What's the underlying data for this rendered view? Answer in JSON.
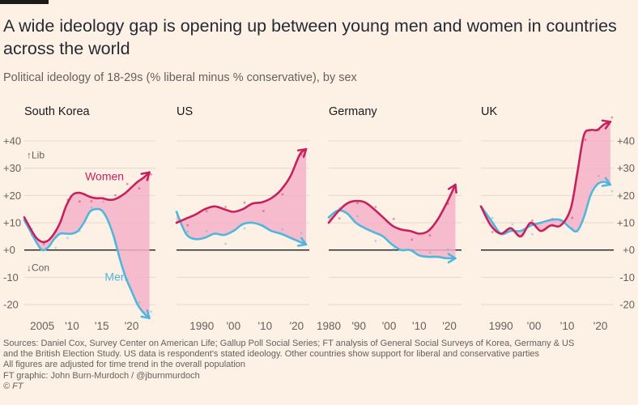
{
  "title": "A wide ideology gap is opening up between young men and women in countries across the world",
  "subtitle": "Political ideology of 18-29s (% liberal minus % conservative), by sex",
  "colors": {
    "women": "#c7215d",
    "men": "#4fb6dc",
    "gap_fill": "#f5b3c8",
    "background": "#fdf1e6",
    "grid": "#e5d8cc",
    "zero_line": "#1a1a1a"
  },
  "chart_data": {
    "type": "line",
    "ylim": [
      -25,
      45
    ],
    "yticks": [
      "+40",
      "+30",
      "+20",
      "+10",
      "+0",
      "-10",
      "-20"
    ],
    "ytick_values": [
      40,
      30,
      20,
      10,
      0,
      -10,
      -20
    ],
    "annotations": {
      "lib": "↑Lib",
      "con": "↓Con"
    },
    "panels": [
      {
        "title": "South Korea",
        "xlim": [
          2002,
          2024
        ],
        "xticks": [
          {
            "value": 2005,
            "label": "2005"
          },
          {
            "value": 2010,
            "label": "'10"
          },
          {
            "value": 2015,
            "label": "'15"
          },
          {
            "value": 2020,
            "label": "'20"
          }
        ],
        "series": [
          {
            "name": "Women",
            "x": [
              2002,
              2003,
              2004,
              2005,
              2006,
              2007,
              2008,
              2009,
              2010,
              2011,
              2012,
              2013,
              2014,
              2015,
              2016,
              2017,
              2018,
              2019,
              2020,
              2021,
              2022,
              2023
            ],
            "y": [
              12,
              8,
              4.5,
              3,
              3.5,
              6,
              10,
              16,
              20,
              21,
              20.5,
              19.5,
              19,
              19,
              18.5,
              18.5,
              19.5,
              21,
              23,
              25,
              26.5,
              28.5
            ]
          },
          {
            "name": "Men",
            "x": [
              2002,
              2003,
              2004,
              2005,
              2006,
              2007,
              2008,
              2009,
              2010,
              2011,
              2012,
              2013,
              2014,
              2015,
              2016,
              2017,
              2018,
              2019,
              2020,
              2021,
              2022,
              2023
            ],
            "y": [
              11,
              7,
              3,
              0,
              1,
              4,
              6,
              6,
              6,
              7,
              10,
              14,
              15,
              14.5,
              11,
              5,
              -3,
              -10,
              -15,
              -20,
              -23,
              -25
            ]
          }
        ]
      },
      {
        "title": "US",
        "xlim": [
          1982,
          2024
        ],
        "xticks": [
          {
            "value": 1990,
            "label": "1990"
          },
          {
            "value": 2000,
            "label": "'00"
          },
          {
            "value": 2010,
            "label": "'10"
          },
          {
            "value": 2020,
            "label": "'20"
          }
        ],
        "series": [
          {
            "name": "",
            "x": [
              1982,
              1985,
              1988,
              1991,
              1994,
              1997,
              2000,
              2003,
              2006,
              2009,
              2012,
              2015,
              2018,
              2021,
              2023
            ],
            "y": [
              10,
              11.5,
              13,
              15,
              16,
              15,
              14,
              15,
              17,
              17.5,
              19,
              22,
              27,
              35,
              37
            ]
          },
          {
            "name": "",
            "x": [
              1982,
              1985,
              1988,
              1991,
              1994,
              1997,
              2000,
              2003,
              2006,
              2009,
              2012,
              2015,
              2018,
              2021,
              2023
            ],
            "y": [
              14,
              6,
              4,
              4.5,
              6,
              5.5,
              7,
              9.5,
              10,
              9,
              7,
              6,
              4.5,
              3,
              2
            ]
          }
        ]
      },
      {
        "title": "Germany",
        "xlim": [
          1980,
          2024
        ],
        "xticks": [
          {
            "value": 1980,
            "label": "1980"
          },
          {
            "value": 1990,
            "label": "'90"
          },
          {
            "value": 2000,
            "label": "'00"
          },
          {
            "value": 2010,
            "label": "'10"
          },
          {
            "value": 2020,
            "label": "'20"
          }
        ],
        "series": [
          {
            "name": "",
            "x": [
              1980,
              1983,
              1986,
              1989,
              1992,
              1995,
              1998,
              2001,
              2004,
              2007,
              2010,
              2013,
              2016,
              2019,
              2022
            ],
            "y": [
              10,
              14,
              17,
              18,
              17.5,
              15,
              12,
              9,
              7.5,
              7,
              6,
              7,
              11,
              17,
              24
            ]
          },
          {
            "name": "",
            "x": [
              1980,
              1983,
              1986,
              1989,
              1992,
              1995,
              1998,
              2001,
              2004,
              2007,
              2010,
              2013,
              2016,
              2019,
              2022
            ],
            "y": [
              12,
              14.5,
              13.5,
              10,
              8,
              6.5,
              5,
              2,
              0,
              0,
              -2,
              -2.5,
              -2.5,
              -3,
              -3
            ]
          }
        ]
      },
      {
        "title": "UK",
        "xlim": [
          1984,
          2024
        ],
        "xticks": [
          {
            "value": 1990,
            "label": "1990"
          },
          {
            "value": 2000,
            "label": "'00"
          },
          {
            "value": 2010,
            "label": "'10"
          },
          {
            "value": 2020,
            "label": "'20"
          }
        ],
        "series": [
          {
            "name": "",
            "x": [
              1984,
              1987,
              1990,
              1993,
              1996,
              1999,
              2002,
              2005,
              2008,
              2011,
              2013,
              2015,
              2017,
              2019,
              2021,
              2023
            ],
            "y": [
              16,
              9,
              6,
              8,
              5,
              10,
              7,
              9,
              9,
              15,
              28,
              42,
              44,
              44,
              46,
              47
            ]
          },
          {
            "name": "",
            "x": [
              1984,
              1987,
              1990,
              1993,
              1996,
              1999,
              2002,
              2005,
              2008,
              2011,
              2013,
              2015,
              2017,
              2019,
              2021,
              2023
            ],
            "y": [
              16,
              11,
              6,
              7,
              7,
              9,
              10,
              11,
              11,
              8,
              7,
              12,
              20,
              24,
              25,
              24
            ]
          }
        ]
      }
    ]
  },
  "footer": {
    "line1": "Sources: Daniel Cox, Survey Center on American Life; Gallup Poll Social Series; FT analysis of General Social Surveys of Korea, Germany & US",
    "line2": "and the British Election Study. US data is respondent's stated ideology. Other countries show support for liberal and conservative parties",
    "line3": "All figures are adjusted for time trend in the overall population",
    "credit": "FT graphic: John Burn-Murdoch / @jburnmurdoch",
    "copyright": "© FT"
  }
}
